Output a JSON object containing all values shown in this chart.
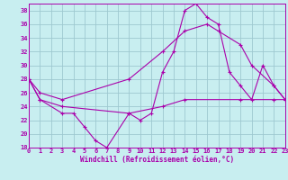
{
  "xlabel": "Windchill (Refroidissement éolien,°C)",
  "bg_color": "#c8eef0",
  "grid_color": "#9ec8d0",
  "line_color": "#aa00aa",
  "xlim": [
    0,
    23
  ],
  "ylim": [
    18,
    39
  ],
  "yticks": [
    18,
    20,
    22,
    24,
    26,
    28,
    30,
    32,
    34,
    36,
    38
  ],
  "xticks": [
    0,
    1,
    2,
    3,
    4,
    5,
    6,
    7,
    8,
    9,
    10,
    11,
    12,
    13,
    14,
    15,
    16,
    17,
    18,
    19,
    20,
    21,
    22,
    23
  ],
  "line1_x": [
    0,
    1,
    3,
    4,
    5,
    6,
    7,
    9,
    10,
    11,
    12,
    13,
    14,
    15,
    16,
    17,
    18,
    19,
    20,
    21,
    22,
    23
  ],
  "line1_y": [
    28,
    25,
    23,
    23,
    21,
    19,
    18,
    23,
    22,
    23,
    29,
    32,
    38,
    39,
    37,
    36,
    29,
    27,
    25,
    30,
    27,
    25
  ],
  "line2_x": [
    0,
    1,
    3,
    9,
    12,
    14,
    16,
    17,
    19,
    20,
    22,
    23
  ],
  "line2_y": [
    28,
    26,
    25,
    28,
    32,
    35,
    36,
    35,
    33,
    30,
    27,
    25
  ],
  "line3_x": [
    0,
    1,
    3,
    9,
    12,
    14,
    19,
    22,
    23
  ],
  "line3_y": [
    28,
    25,
    24,
    23,
    24,
    25,
    25,
    25,
    25
  ]
}
